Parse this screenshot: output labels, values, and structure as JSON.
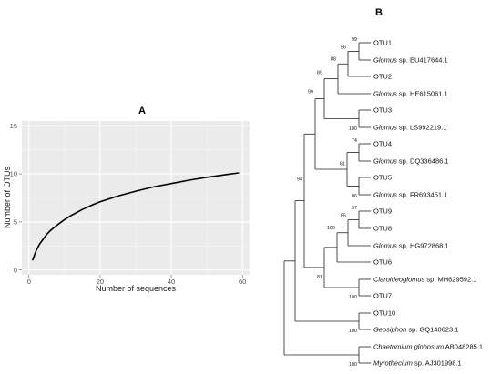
{
  "chart_data": [
    {
      "type": "line",
      "panel_label": "A",
      "xlabel": "Number of sequences",
      "ylabel": "Number of OTUs",
      "xlim": [
        -2,
        62
      ],
      "ylim": [
        -0.5,
        15.5
      ],
      "xticks": [
        0,
        20,
        40,
        60
      ],
      "yticks": [
        0,
        5,
        10,
        15
      ],
      "grid": true,
      "background": "#ebebeb",
      "line_color": "#000000",
      "series": [
        {
          "x": [
            1,
            2,
            3,
            4,
            5,
            6,
            8,
            10,
            12,
            15,
            18,
            20,
            25,
            30,
            35,
            40,
            45,
            50,
            55,
            59
          ],
          "values": [
            1.0,
            2.0,
            2.7,
            3.2,
            3.7,
            4.1,
            4.7,
            5.25,
            5.7,
            6.3,
            6.8,
            7.1,
            7.7,
            8.2,
            8.65,
            9.0,
            9.35,
            9.65,
            9.9,
            10.1
          ]
        }
      ]
    },
    {
      "type": "tree",
      "panel_label": "B",
      "leaves": [
        {
          "id": "OTU1",
          "genus": "",
          "rest": "OTU1"
        },
        {
          "id": "EU417644",
          "genus": "Glomus",
          "rest": " sp. EU417644.1"
        },
        {
          "id": "OTU2",
          "genus": "",
          "rest": "OTU2"
        },
        {
          "id": "HE615061",
          "genus": "Glomus",
          "rest": " sp. HE615061.1"
        },
        {
          "id": "OTU3",
          "genus": "",
          "rest": "OTU3"
        },
        {
          "id": "LS992219",
          "genus": "Glomus",
          "rest": " sp. LS992219.1"
        },
        {
          "id": "OTU4",
          "genus": "",
          "rest": "OTU4"
        },
        {
          "id": "DQ336486",
          "genus": "Glomus",
          "rest": " sp. DQ336486.1"
        },
        {
          "id": "OTU5",
          "genus": "",
          "rest": "OTU5"
        },
        {
          "id": "FR693451",
          "genus": "Glomus",
          "rest": " sp. FR693451.1"
        },
        {
          "id": "OTU9",
          "genus": "",
          "rest": "OTU9"
        },
        {
          "id": "OTU8",
          "genus": "",
          "rest": "OTU8"
        },
        {
          "id": "HG972868",
          "genus": "Glomus",
          "rest": " sp. HG972868.1"
        },
        {
          "id": "OTU6",
          "genus": "",
          "rest": "OTU6"
        },
        {
          "id": "MH629592",
          "genus": "Claroideoglomus",
          "rest": " sp. MH629592.1"
        },
        {
          "id": "OTU7",
          "genus": "",
          "rest": "OTU7"
        },
        {
          "id": "OTU10",
          "genus": "",
          "rest": "OTU10"
        },
        {
          "id": "GQ140623",
          "genus": "Geosiphon",
          "rest": " sp. GQ140623.1"
        },
        {
          "id": "AB048285",
          "genus": "Chaetomium globosum",
          "rest": " AB048285.1"
        },
        {
          "id": "AJ301998",
          "genus": "Myrothecium",
          "rest": " sp. AJ301998.1"
        }
      ],
      "bootstrap_values": [
        "99",
        "56",
        "88",
        "89",
        "100",
        "74",
        "61",
        "86",
        "97",
        "65",
        "100",
        "81",
        "100",
        "99",
        "94",
        "100",
        "100"
      ]
    }
  ]
}
